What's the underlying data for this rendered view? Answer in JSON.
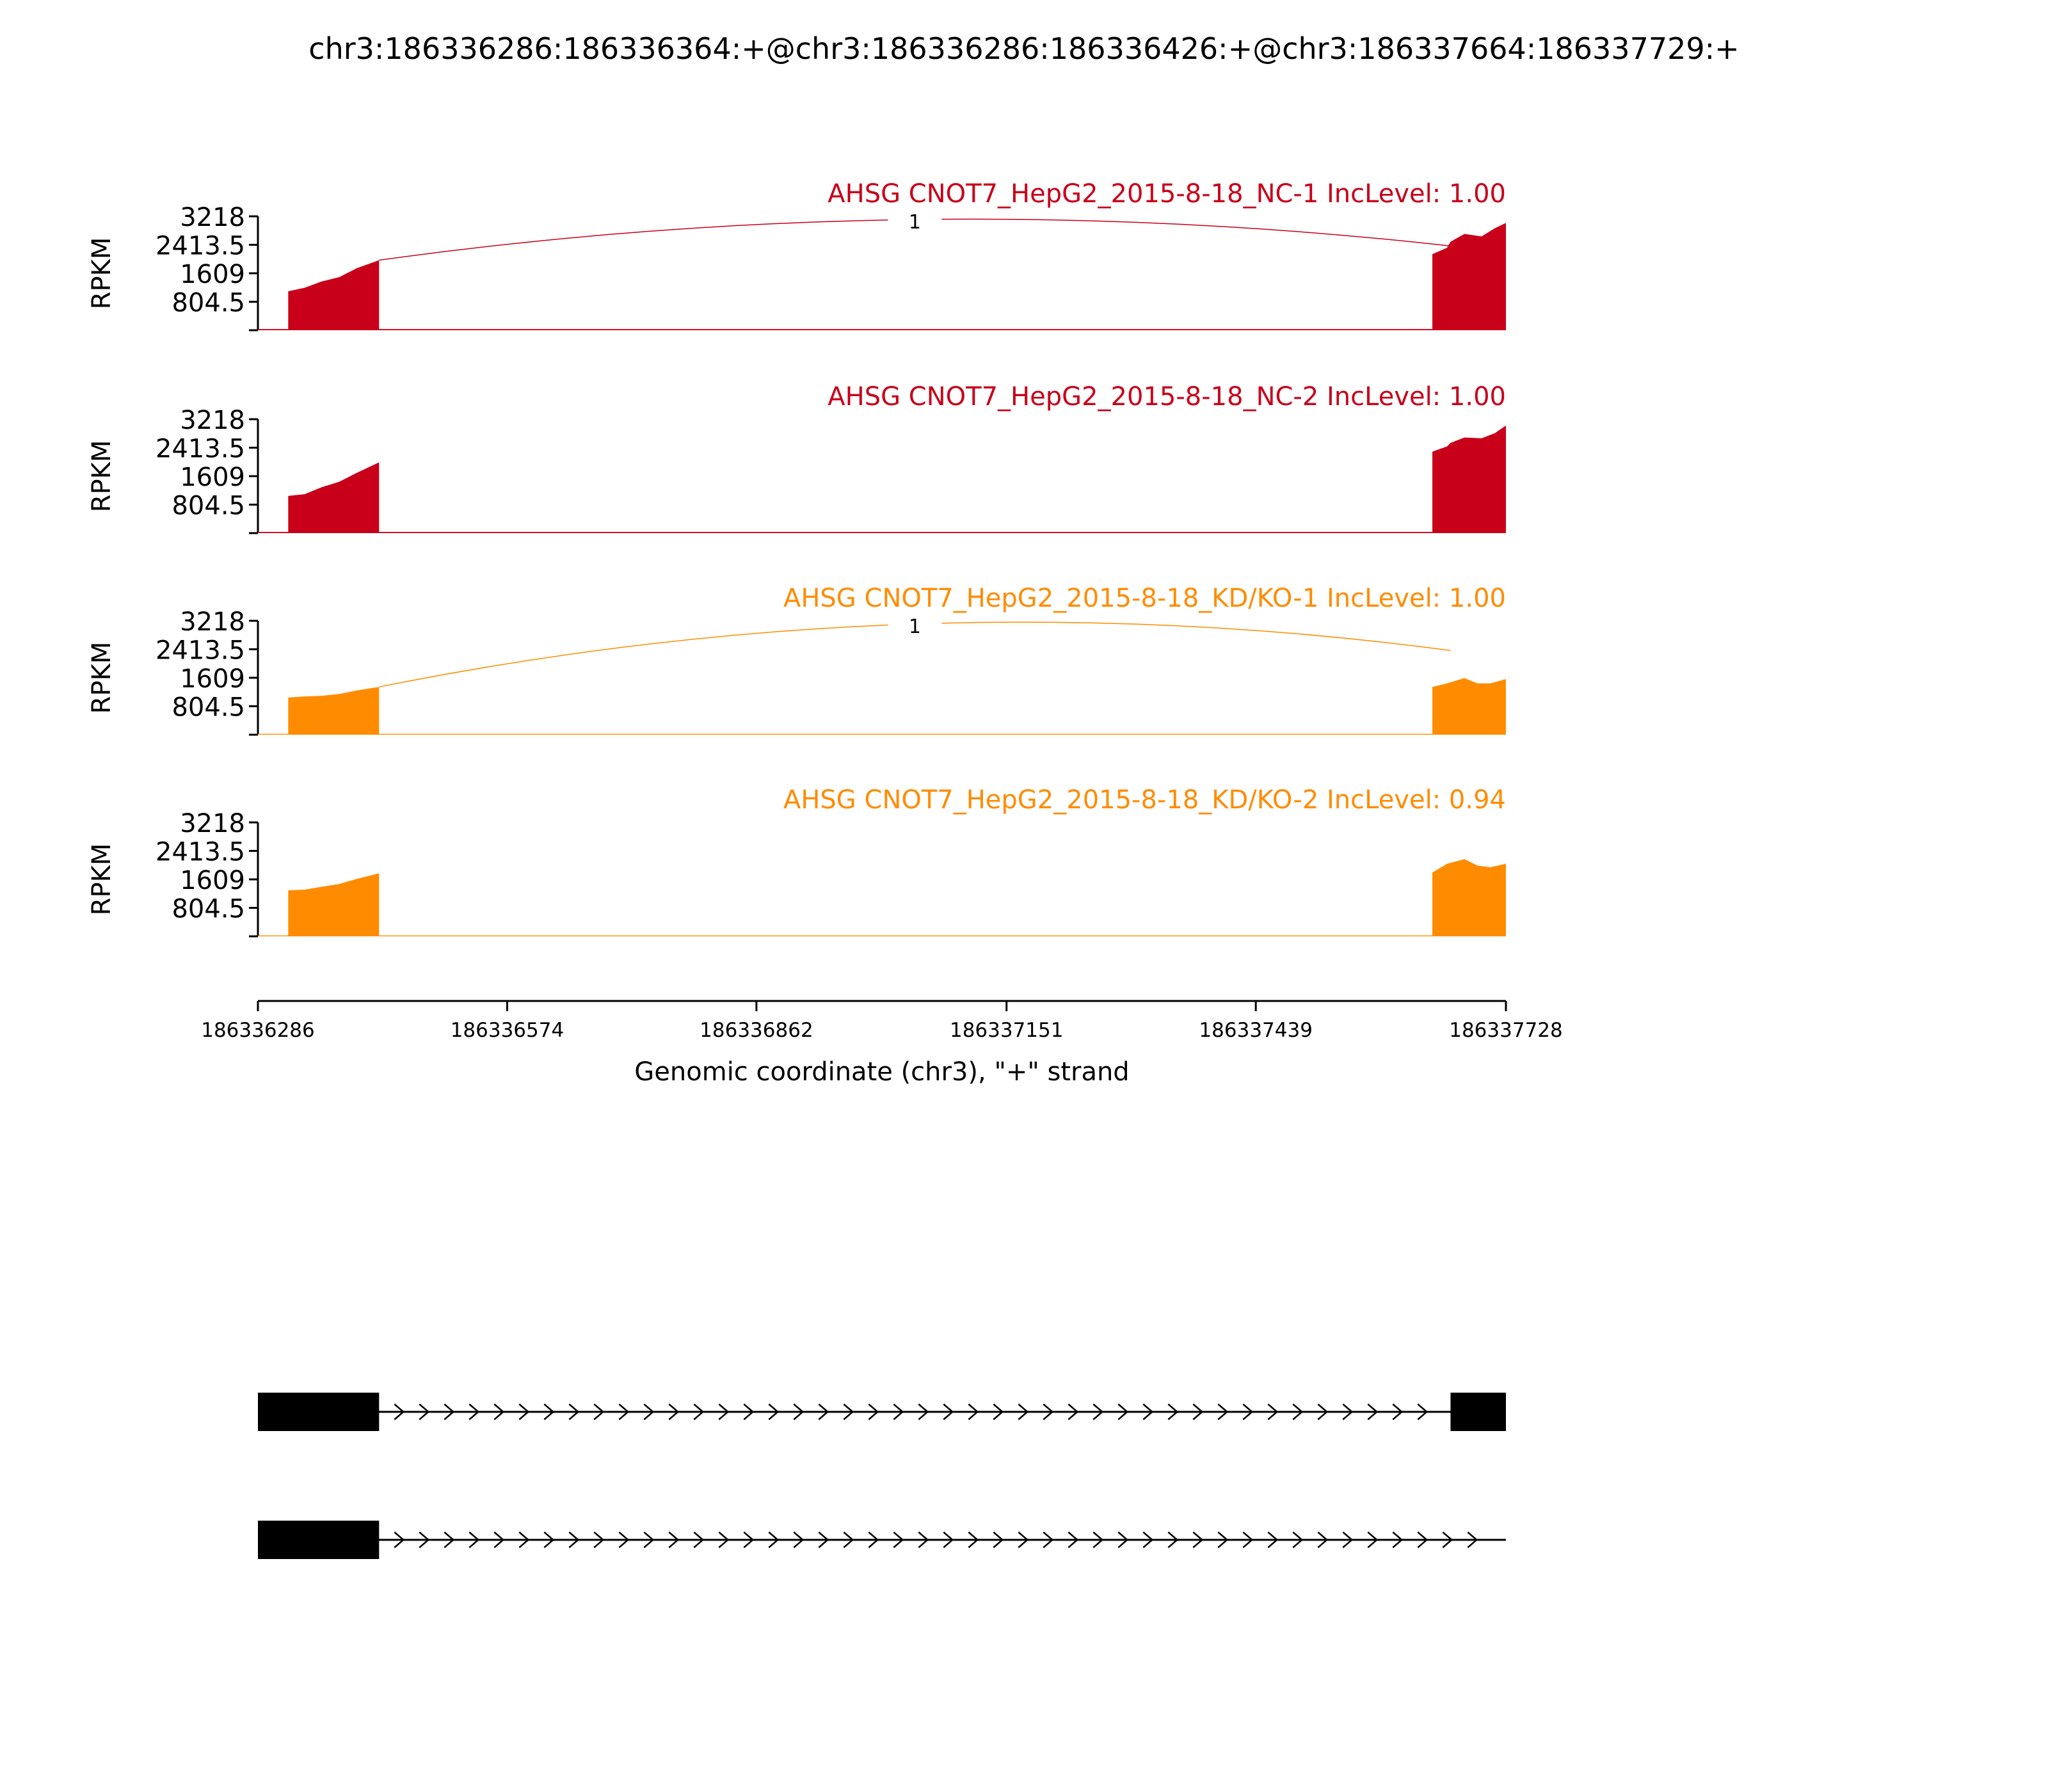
{
  "chart_data": {
    "type": "area",
    "title": "chr3:186336286:186336364:+@chr3:186336286:186336426:+@chr3:186337664:186337729:+",
    "xlabel": "Genomic coordinate (chr3), \"+\" strand",
    "xlim": [
      186336286,
      186337728
    ],
    "x_ticks": [
      186336286,
      186336574,
      186336862,
      186337151,
      186337439,
      186337728
    ],
    "ylabel": "RPKM",
    "ylim": [
      0,
      3218
    ],
    "y_ticks": [
      "3218",
      "2413.5",
      "1609",
      "804.5"
    ],
    "y_tick_values": [
      3218,
      2413.5,
      1609,
      804.5
    ],
    "panels": [
      {
        "label": "AHSG CNOT7_HepG2_2015-8-18_NC-1 IncLevel: 1.00",
        "color": "#c8001a",
        "junctions": [
          {
            "start": 186336426,
            "end": 186337664,
            "label": "1"
          }
        ],
        "exons": [
          {
            "x": [
              186336321,
              186336340,
              186336360,
              186336380,
              186336400,
              186336426
            ],
            "y": [
              1100,
              1200,
              1380,
              1500,
              1750,
              1980
            ]
          },
          {
            "x": [
              186337643,
              186337660,
              186337664,
              186337680,
              186337700,
              186337715,
              186337728
            ],
            "y": [
              2150,
              2330,
              2500,
              2720,
              2650,
              2880,
              3030
            ]
          }
        ],
        "intron_level": 35
      },
      {
        "label": "AHSG CNOT7_HepG2_2015-8-18_NC-2 IncLevel: 1.00",
        "color": "#c8001a",
        "junctions": [],
        "exons": [
          {
            "x": [
              186336321,
              186336340,
              186336360,
              186336380,
              186336400,
              186336426
            ],
            "y": [
              1050,
              1100,
              1300,
              1450,
              1700,
              2000
            ]
          },
          {
            "x": [
              186337643,
              186337660,
              186337664,
              186337680,
              186337700,
              186337715,
              186337728
            ],
            "y": [
              2300,
              2450,
              2550,
              2700,
              2680,
              2820,
              3040
            ]
          }
        ],
        "intron_level": 35
      },
      {
        "label": "AHSG CNOT7_HepG2_2015-8-18_KD/KO-1 IncLevel: 1.00",
        "color": "#ff8c00",
        "junctions": [
          {
            "start": 186336426,
            "end": 186337664,
            "label": "1"
          }
        ],
        "exons": [
          {
            "x": [
              186336321,
              186336340,
              186336360,
              186336380,
              186336400,
              186336426
            ],
            "y": [
              1050,
              1080,
              1100,
              1150,
              1250,
              1350
            ]
          },
          {
            "x": [
              186337643,
              186337660,
              186337680,
              186337695,
              186337710,
              186337728
            ],
            "y": [
              1350,
              1450,
              1600,
              1450,
              1450,
              1570
            ]
          }
        ],
        "intron_level": 25
      },
      {
        "label": "AHSG CNOT7_HepG2_2015-8-18_KD/KO-2 IncLevel: 0.94",
        "color": "#ff8c00",
        "junctions": [],
        "exons": [
          {
            "x": [
              186336321,
              186336340,
              186336360,
              186336380,
              186336400,
              186336426
            ],
            "y": [
              1300,
              1320,
              1400,
              1480,
              1620,
              1780
            ]
          },
          {
            "x": [
              186337643,
              186337660,
              186337680,
              186337695,
              186337710,
              186337728
            ],
            "y": [
              1800,
              2050,
              2180,
              2000,
              1950,
              2050
            ]
          }
        ],
        "intron_level": 25
      }
    ],
    "gene_tracks": [
      {
        "blocks": [
          [
            186336286,
            186336426
          ],
          [
            186337664,
            186337729
          ]
        ]
      },
      {
        "blocks": [
          [
            186336286,
            186336426
          ]
        ],
        "line_end": 186337729
      }
    ]
  }
}
